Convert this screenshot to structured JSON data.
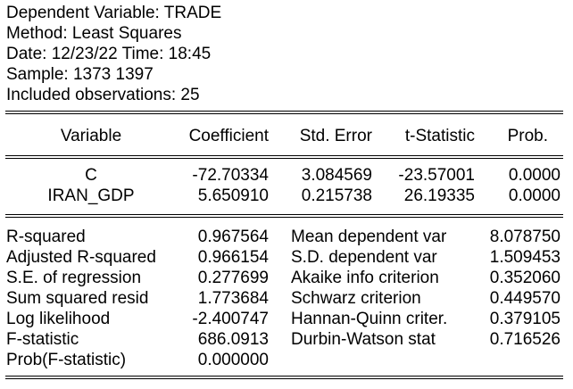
{
  "header": {
    "dependent_variable": "Dependent Variable: TRADE",
    "method": "Method: Least Squares",
    "date": "Date: 12/23/22   Time: 18:45",
    "sample": "Sample: 1373 1397",
    "observations": "Included observations: 25"
  },
  "table": {
    "columns": [
      "Variable",
      "Coefficient",
      "Std. Error",
      "t-Statistic",
      "Prob."
    ],
    "rows": [
      {
        "variable": "C",
        "coefficient": "-72.70334",
        "std_error": "3.084569",
        "t_statistic": "-23.57001",
        "prob": "0.0000"
      },
      {
        "variable": "IRAN_GDP",
        "coefficient": "5.650910",
        "std_error": "0.215738",
        "t_statistic": "26.19335",
        "prob": "0.0000"
      }
    ]
  },
  "stats": {
    "left": [
      {
        "label": "R-squared",
        "value": "0.967564"
      },
      {
        "label": "Adjusted R-squared",
        "value": "0.966154"
      },
      {
        "label": "S.E. of regression",
        "value": "0.277699"
      },
      {
        "label": "Sum squared resid",
        "value": "1.773684"
      },
      {
        "label": "Log likelihood",
        "value": "-2.400747"
      },
      {
        "label": "F-statistic",
        "value": "686.0913"
      },
      {
        "label": "Prob(F-statistic)",
        "value": "0.000000"
      }
    ],
    "right": [
      {
        "label": "Mean dependent var",
        "value": "8.078750"
      },
      {
        "label": "S.D. dependent var",
        "value": "1.509453"
      },
      {
        "label": "Akaike info criterion",
        "value": "0.352060"
      },
      {
        "label": "Schwarz criterion",
        "value": "0.449570"
      },
      {
        "label": "Hannan-Quinn criter.",
        "value": "0.379105"
      },
      {
        "label": "Durbin-Watson stat",
        "value": "0.716526"
      }
    ]
  }
}
